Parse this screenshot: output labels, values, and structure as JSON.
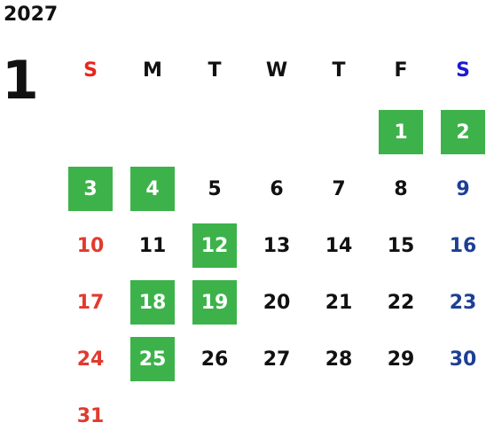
{
  "calendar": {
    "year": "2027",
    "month": "1",
    "weekdays": [
      {
        "label": "S",
        "color": "#e8261c"
      },
      {
        "label": "M",
        "color": "#111111"
      },
      {
        "label": "T",
        "color": "#111111"
      },
      {
        "label": "W",
        "color": "#111111"
      },
      {
        "label": "T",
        "color": "#111111"
      },
      {
        "label": "F",
        "color": "#111111"
      },
      {
        "label": "S",
        "color": "#1c1ccf"
      }
    ],
    "first_weekday_index": 5,
    "days": [
      {
        "day": "1",
        "highlighted": true
      },
      {
        "day": "2",
        "highlighted": true
      },
      {
        "day": "3",
        "highlighted": true
      },
      {
        "day": "4",
        "highlighted": true
      },
      {
        "day": "5",
        "highlighted": false
      },
      {
        "day": "6",
        "highlighted": false
      },
      {
        "day": "7",
        "highlighted": false
      },
      {
        "day": "8",
        "highlighted": false
      },
      {
        "day": "9",
        "highlighted": false
      },
      {
        "day": "10",
        "highlighted": false
      },
      {
        "day": "11",
        "highlighted": false
      },
      {
        "day": "12",
        "highlighted": true
      },
      {
        "day": "13",
        "highlighted": false
      },
      {
        "day": "14",
        "highlighted": false
      },
      {
        "day": "15",
        "highlighted": false
      },
      {
        "day": "16",
        "highlighted": false
      },
      {
        "day": "17",
        "highlighted": false
      },
      {
        "day": "18",
        "highlighted": true
      },
      {
        "day": "19",
        "highlighted": true
      },
      {
        "day": "20",
        "highlighted": false
      },
      {
        "day": "21",
        "highlighted": false
      },
      {
        "day": "22",
        "highlighted": false
      },
      {
        "day": "23",
        "highlighted": false
      },
      {
        "day": "24",
        "highlighted": false
      },
      {
        "day": "25",
        "highlighted": true
      },
      {
        "day": "26",
        "highlighted": false
      },
      {
        "day": "27",
        "highlighted": false
      },
      {
        "day": "28",
        "highlighted": false
      },
      {
        "day": "29",
        "highlighted": false
      },
      {
        "day": "30",
        "highlighted": false
      },
      {
        "day": "31",
        "highlighted": false
      }
    ],
    "colors": {
      "highlight": "#3db24a",
      "sunday_day": "#e23a2e",
      "saturday_day": "#1d3f94",
      "regular": "#111111"
    }
  }
}
